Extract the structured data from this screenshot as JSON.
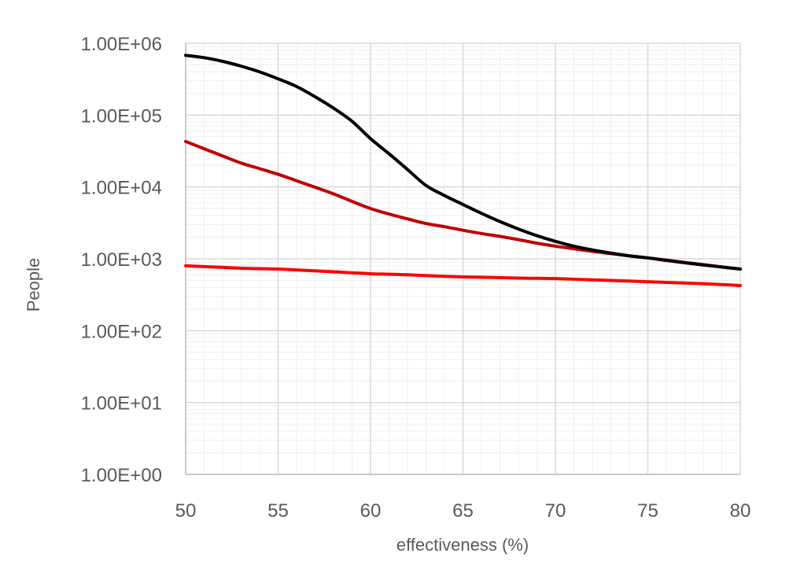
{
  "chart_data": {
    "type": "line",
    "title": "",
    "xlabel": "effectiveness (%)",
    "ylabel": "People",
    "xlim": [
      50,
      80
    ],
    "ylim": [
      1,
      1000000
    ],
    "yscale": "log",
    "grid": true,
    "legend": "none",
    "x_ticks": [
      50,
      55,
      60,
      65,
      70,
      75,
      80
    ],
    "x_tick_labels": [
      "50",
      "55",
      "60",
      "65",
      "70",
      "75",
      "80"
    ],
    "y_ticks": [
      1,
      10,
      100,
      1000,
      10000,
      100000,
      1000000
    ],
    "y_tick_labels": [
      "1.00E+00",
      "1.00E+01",
      "1.00E+02",
      "1.00E+03",
      "1.00E+04",
      "1.00E+05",
      "1.00E+06"
    ],
    "x": [
      50,
      51,
      52,
      53,
      54,
      55,
      56,
      57,
      58,
      59,
      60,
      61,
      62,
      63,
      64,
      65,
      66,
      67,
      68,
      69,
      70,
      71,
      72,
      73,
      74,
      75,
      76,
      77,
      78,
      79,
      80
    ],
    "series": [
      {
        "name": "black",
        "color": "#000000",
        "values": [
          680000,
          630000,
          560000,
          480000,
          400000,
          320000,
          250000,
          180000,
          125000,
          82000,
          47000,
          29000,
          17500,
          10500,
          7600,
          5700,
          4300,
          3300,
          2600,
          2100,
          1750,
          1500,
          1330,
          1200,
          1100,
          1030,
          950,
          880,
          820,
          770,
          720
        ]
      },
      {
        "name": "dark-red",
        "color": "#C00000",
        "values": [
          43000,
          34000,
          27000,
          21500,
          18000,
          15000,
          12200,
          9900,
          8000,
          6300,
          5000,
          4200,
          3600,
          3100,
          2800,
          2500,
          2250,
          2050,
          1850,
          1650,
          1500,
          1380,
          1270,
          1180,
          1100,
          1030,
          960,
          890,
          830,
          770,
          720
        ]
      },
      {
        "name": "bright-red",
        "color": "#FF0000",
        "values": [
          800,
          780,
          760,
          740,
          730,
          720,
          700,
          680,
          660,
          640,
          620,
          610,
          600,
          585,
          570,
          560,
          555,
          548,
          540,
          535,
          530,
          520,
          510,
          500,
          490,
          480,
          470,
          460,
          450,
          438,
          425
        ]
      }
    ]
  }
}
